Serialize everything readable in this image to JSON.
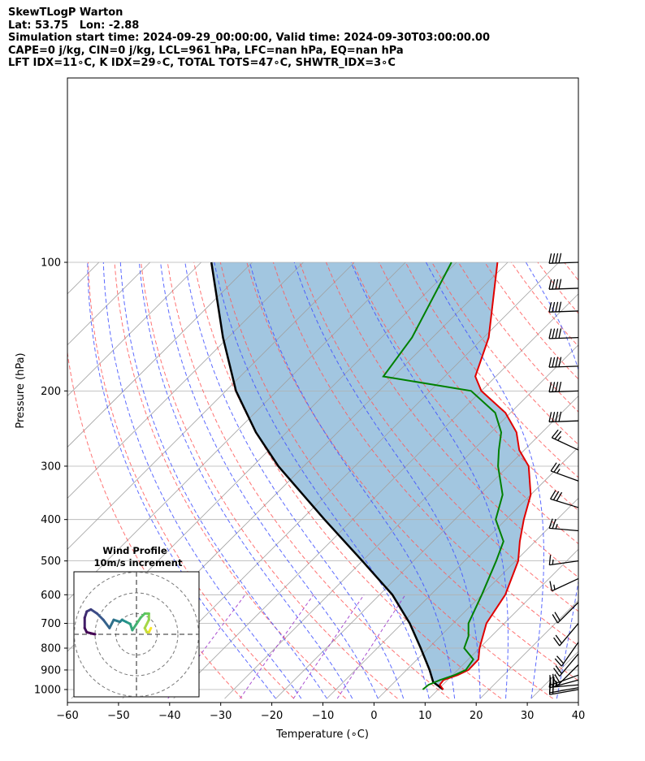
{
  "header": {
    "line1": "SkewTLogP Warton",
    "line2": "Lat: 53.75   Lon: -2.88",
    "line3": "Simulation start time: 2024-09-29_00:00:00, Valid time: 2024-09-30T03:00:00.00",
    "line4": "CAPE=0 j/kg, CIN=0 j/kg, LCL=961 hPa, LFC=nan hPa, EQ=nan hPa",
    "line5": "LFT IDX=11∘C, K IDX=29∘C, TOTAL TOTS=47∘C, SHWTR_IDX=3∘C"
  },
  "colors": {
    "temperature": "#e00000",
    "dewpoint": "#008000",
    "parcel": "#000000",
    "shading": "#a2c6e0",
    "dry_adiabat": "#ff5a5a",
    "moist_adiabat": "#4050ff",
    "mixing_ratio": "#9a30c8",
    "isotherm": "#a0a0a0",
    "isobar": "#b0b0b0"
  },
  "chart_data": {
    "type": "skew-t log-p",
    "xlabel": "Temperature (∘C)",
    "ylabel": "Pressure (hPa)",
    "xlim": [
      -60,
      40
    ],
    "ylim": [
      1050,
      100
    ],
    "x_ticks": [
      "−60",
      "−50",
      "−40",
      "−30",
      "−20",
      "−10",
      "0",
      "10",
      "20",
      "30",
      "40"
    ],
    "x_tick_values": [
      -60,
      -50,
      -40,
      -30,
      -20,
      -10,
      0,
      10,
      20,
      30,
      40
    ],
    "y_ticks": [
      "1000",
      "900",
      "800",
      "700",
      "600",
      "500",
      "400",
      "300",
      "200",
      "100"
    ],
    "y_tick_values": [
      1000,
      900,
      800,
      700,
      600,
      500,
      400,
      300,
      200,
      100
    ],
    "temperature_profile": [
      {
        "p": 1000,
        "t": 11.0
      },
      {
        "p": 975,
        "t": 9.4
      },
      {
        "p": 950,
        "t": 9.2
      },
      {
        "p": 925,
        "t": 11.0
      },
      {
        "p": 900,
        "t": 12.1
      },
      {
        "p": 850,
        "t": 12.0
      },
      {
        "p": 800,
        "t": 10.0
      },
      {
        "p": 700,
        "t": 6.5
      },
      {
        "p": 600,
        "t": 4.6
      },
      {
        "p": 500,
        "t": 0.5
      },
      {
        "p": 450,
        "t": -3.0
      },
      {
        "p": 400,
        "t": -6.5
      },
      {
        "p": 350,
        "t": -10.0
      },
      {
        "p": 300,
        "t": -16.0
      },
      {
        "p": 275,
        "t": -21.0
      },
      {
        "p": 250,
        "t": -25.0
      },
      {
        "p": 225,
        "t": -31.0
      },
      {
        "p": 200,
        "t": -40.0
      },
      {
        "p": 185,
        "t": -44.0
      },
      {
        "p": 150,
        "t": -49.0
      },
      {
        "p": 100,
        "t": -62.0
      }
    ],
    "dewpoint_profile": [
      {
        "p": 1000,
        "t": 7.0
      },
      {
        "p": 975,
        "t": 7.2
      },
      {
        "p": 950,
        "t": 8.5
      },
      {
        "p": 925,
        "t": 10.4
      },
      {
        "p": 900,
        "t": 11.6
      },
      {
        "p": 850,
        "t": 11.0
      },
      {
        "p": 800,
        "t": 7.0
      },
      {
        "p": 750,
        "t": 5.5
      },
      {
        "p": 700,
        "t": 3.0
      },
      {
        "p": 600,
        "t": 0.0
      },
      {
        "p": 500,
        "t": -3.8
      },
      {
        "p": 450,
        "t": -6.2
      },
      {
        "p": 400,
        "t": -12.0
      },
      {
        "p": 350,
        "t": -15.5
      },
      {
        "p": 300,
        "t": -22.0
      },
      {
        "p": 275,
        "t": -25.0
      },
      {
        "p": 250,
        "t": -28.0
      },
      {
        "p": 225,
        "t": -33.0
      },
      {
        "p": 200,
        "t": -42.0
      },
      {
        "p": 185,
        "t": -62.0
      },
      {
        "p": 150,
        "t": -64.0
      },
      {
        "p": 100,
        "t": -71.0
      }
    ],
    "parcel_profile": [
      {
        "p": 1000,
        "t": 11.0
      },
      {
        "p": 961,
        "t": 7.6
      },
      {
        "p": 900,
        "t": 4.5
      },
      {
        "p": 800,
        "t": -1.5
      },
      {
        "p": 700,
        "t": -8.5
      },
      {
        "p": 600,
        "t": -17.5
      },
      {
        "p": 500,
        "t": -30.0
      },
      {
        "p": 400,
        "t": -45.5
      },
      {
        "p": 300,
        "t": -65.0
      },
      {
        "p": 250,
        "t": -76.0
      },
      {
        "p": 200,
        "t": -88.0
      },
      {
        "p": 150,
        "t": -101.0
      },
      {
        "p": 100,
        "t": -118.0
      }
    ],
    "wind_barbs": [
      {
        "p": 1000,
        "speed_kt": 20,
        "dir_deg": 260
      },
      {
        "p": 990,
        "speed_kt": 20,
        "dir_deg": 260
      },
      {
        "p": 975,
        "speed_kt": 25,
        "dir_deg": 265
      },
      {
        "p": 950,
        "speed_kt": 25,
        "dir_deg": 255
      },
      {
        "p": 925,
        "speed_kt": 20,
        "dir_deg": 250
      },
      {
        "p": 875,
        "speed_kt": 20,
        "dir_deg": 225
      },
      {
        "p": 825,
        "speed_kt": 20,
        "dir_deg": 220
      },
      {
        "p": 775,
        "speed_kt": 20,
        "dir_deg": 215
      },
      {
        "p": 700,
        "speed_kt": 20,
        "dir_deg": 220
      },
      {
        "p": 625,
        "speed_kt": 20,
        "dir_deg": 225
      },
      {
        "p": 550,
        "speed_kt": 15,
        "dir_deg": 245
      },
      {
        "p": 500,
        "speed_kt": 15,
        "dir_deg": 262
      },
      {
        "p": 425,
        "speed_kt": 25,
        "dir_deg": 275
      },
      {
        "p": 375,
        "speed_kt": 30,
        "dir_deg": 287
      },
      {
        "p": 325,
        "speed_kt": 25,
        "dir_deg": 290
      },
      {
        "p": 275,
        "speed_kt": 25,
        "dir_deg": 295
      },
      {
        "p": 235,
        "speed_kt": 40,
        "dir_deg": 268
      },
      {
        "p": 200,
        "speed_kt": 40,
        "dir_deg": 268
      },
      {
        "p": 175,
        "speed_kt": 40,
        "dir_deg": 268
      },
      {
        "p": 150,
        "speed_kt": 40,
        "dir_deg": 268
      },
      {
        "p": 130,
        "speed_kt": 40,
        "dir_deg": 268
      },
      {
        "p": 115,
        "speed_kt": 40,
        "dir_deg": 268
      },
      {
        "p": 100,
        "speed_kt": 40,
        "dir_deg": 268
      }
    ],
    "hodograph": {
      "title": "Wind Profile",
      "subtitle": "10m/s increment",
      "ring_increment_ms": 10,
      "rings": [
        10,
        20,
        30
      ],
      "points": [
        {
          "u": 7,
          "v": 3
        },
        {
          "u": 6,
          "v": 1
        },
        {
          "u": 5,
          "v": 1
        },
        {
          "u": 4,
          "v": 3
        },
        {
          "u": 6,
          "v": 7
        },
        {
          "u": 6,
          "v": 10
        },
        {
          "u": 4,
          "v": 10
        },
        {
          "u": 2,
          "v": 8
        },
        {
          "u": 0,
          "v": 5
        },
        {
          "u": -2,
          "v": 2
        },
        {
          "u": -3,
          "v": 5
        },
        {
          "u": -5,
          "v": 6
        },
        {
          "u": -7,
          "v": 7
        },
        {
          "u": -8,
          "v": 6
        },
        {
          "u": -11,
          "v": 7
        },
        {
          "u": -13,
          "v": 3
        },
        {
          "u": -16,
          "v": 7
        },
        {
          "u": -19,
          "v": 10
        },
        {
          "u": -22,
          "v": 12
        },
        {
          "u": -24,
          "v": 11
        },
        {
          "u": -25,
          "v": 8
        },
        {
          "u": -25,
          "v": 3
        },
        {
          "u": -24,
          "v": 1
        },
        {
          "u": -20,
          "v": 0
        }
      ]
    }
  }
}
